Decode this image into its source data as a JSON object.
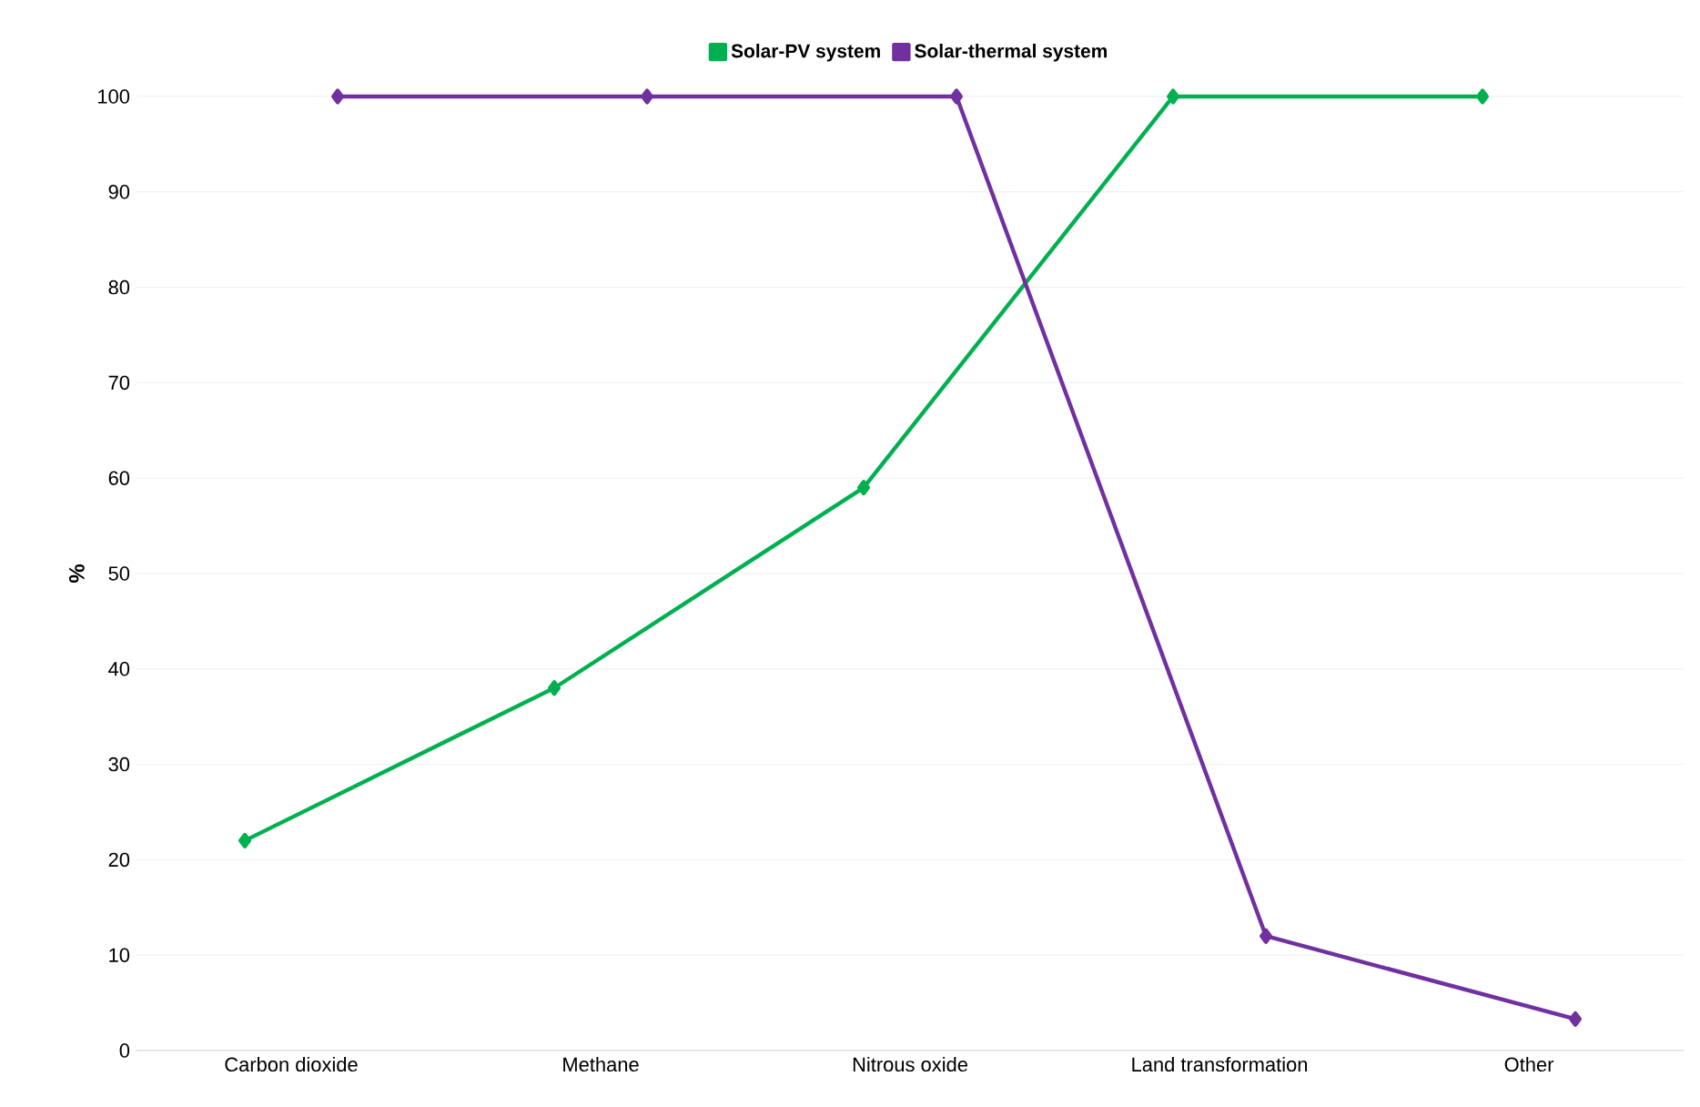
{
  "chart_data": {
    "type": "line",
    "ylabel": "%",
    "categories": [
      "Carbon dioxide",
      "Methane",
      "Nitrous oxide",
      "Land transformation",
      "Other"
    ],
    "series": [
      {
        "name": "Solar-PV system",
        "color": "#00b050",
        "values": [
          22,
          38,
          59,
          100,
          100
        ]
      },
      {
        "name": "Solar-thermal system",
        "color": "#7030a0",
        "values": [
          100,
          100,
          100,
          12,
          3.3
        ]
      }
    ],
    "ylim": [
      0,
      100
    ],
    "yticks": [
      0,
      10,
      20,
      30,
      40,
      50,
      60,
      70,
      80,
      90,
      100
    ],
    "grid": "y",
    "legend": "top",
    "marker": "diamond",
    "line_style": "solid"
  }
}
